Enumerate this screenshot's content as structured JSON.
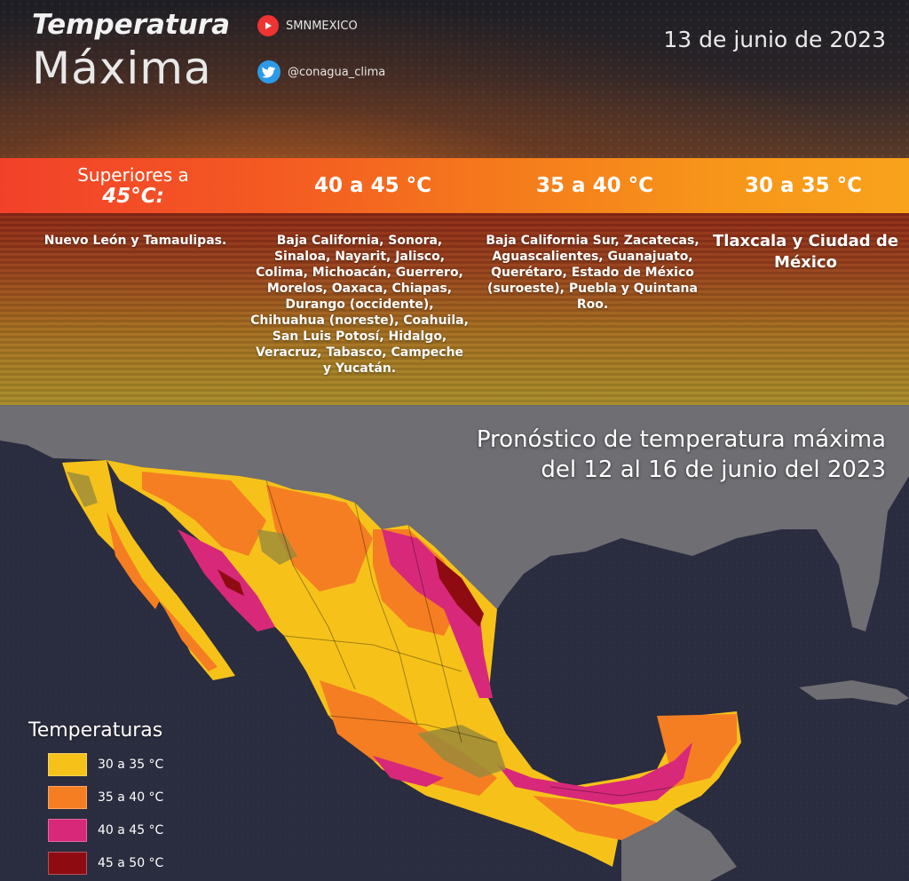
{
  "header": {
    "title_line1": "Temperatura",
    "title_line2": "Máxima",
    "youtube_handle": "SMNMEXICO",
    "twitter_handle": "@conagua_clima",
    "date": "13 de junio de 2023"
  },
  "ranges": {
    "r1_line1": "Superiores a",
    "r1_line2": "45°C:",
    "r2": "40 a 45 °C",
    "r3": "35 a 40 °C",
    "r4": "30 a 35 °C"
  },
  "regions": {
    "r1": "Nuevo León y Tamaulipas.",
    "r2": "Baja California, Sonora, Sinaloa, Nayarit, Jalisco, Colima, Michoacán, Guerrero, Morelos, Oaxaca, Chiapas, Durango (occidente), Chihuahua (noreste), Coahuila, San Luis Potosí, Hidalgo, Veracruz, Tabasco, Campeche y Yucatán.",
    "r3": "Baja California Sur, Zacatecas, Aguascalientes, Guanajuato, Querétaro, Estado de México (suroeste), Puebla y Quintana Roo.",
    "r4": "Tlaxcala y Ciudad de México"
  },
  "map": {
    "title_line1": "Pronóstico de temperatura máxima",
    "title_line2": "del 12 al 16 de junio del 2023"
  },
  "legend": {
    "title": "Temperaturas",
    "items": [
      {
        "label": "30 a 35 °C",
        "color": "#f6c21a"
      },
      {
        "label": "35 a 40 °C",
        "color": "#f57e22"
      },
      {
        "label": "40 a 45 °C",
        "color": "#d8287a"
      },
      {
        "label": "45 a 50 °C",
        "color": "#8e0b12"
      }
    ]
  },
  "colors": {
    "ocean": "#2a2c3f",
    "land": "#6f6f72",
    "yellow": "#f6c21a",
    "orange": "#f57e22",
    "magenta": "#d8287a",
    "darkred": "#8e0b12",
    "olive": "#9a8a3a"
  }
}
